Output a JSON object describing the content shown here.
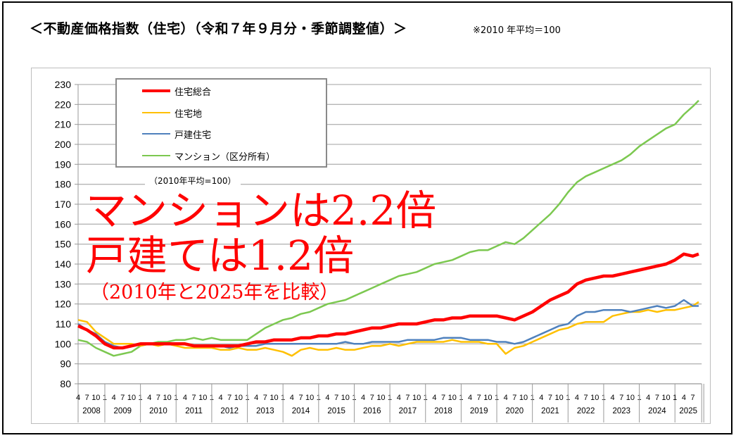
{
  "title": "＜不動産価格指数（住宅）（令和７年９月分・季節調整値）＞",
  "note": "※2010 年平均＝100",
  "annotations": {
    "base": "（2010年平均=100）",
    "line1": "マンションは2.2倍",
    "line2": "戸建ては1.2倍",
    "line3": "（2010年と2025年を比較）"
  },
  "chart_data": {
    "type": "line",
    "ylabel": "",
    "ylim": [
      80,
      230
    ],
    "yticks": [
      "80",
      "90",
      "100",
      "110",
      "120",
      "130",
      "140",
      "150",
      "160",
      "170",
      "180",
      "190",
      "200",
      "210",
      "220",
      "230"
    ],
    "grid": true,
    "legend_placement": "top-left",
    "month_tick_labels": [
      "4",
      "7",
      "10",
      "1"
    ],
    "years": [
      "2008",
      "2009",
      "2010",
      "2011",
      "2012",
      "2013",
      "2014",
      "2015",
      "2016",
      "2017",
      "2018",
      "2019",
      "2020",
      "2021",
      "2022",
      "2023",
      "2024",
      "2025"
    ],
    "last_year_tick_labels": [
      "1",
      "4",
      "7"
    ],
    "x": [
      "2008-04",
      "2008-07",
      "2008-10",
      "2009-01",
      "2009-04",
      "2009-07",
      "2009-10",
      "2010-01",
      "2010-04",
      "2010-07",
      "2010-10",
      "2011-01",
      "2011-04",
      "2011-07",
      "2011-10",
      "2012-01",
      "2012-04",
      "2012-07",
      "2012-10",
      "2013-01",
      "2013-04",
      "2013-07",
      "2013-10",
      "2014-01",
      "2014-04",
      "2014-07",
      "2014-10",
      "2015-01",
      "2015-04",
      "2015-07",
      "2015-10",
      "2016-01",
      "2016-04",
      "2016-07",
      "2016-10",
      "2017-01",
      "2017-04",
      "2017-07",
      "2017-10",
      "2018-01",
      "2018-04",
      "2018-07",
      "2018-10",
      "2019-01",
      "2019-04",
      "2019-07",
      "2019-10",
      "2020-01",
      "2020-04",
      "2020-07",
      "2020-10",
      "2021-01",
      "2021-04",
      "2021-07",
      "2021-10",
      "2022-01",
      "2022-04",
      "2022-07",
      "2022-10",
      "2023-01",
      "2023-04",
      "2023-07",
      "2023-10",
      "2024-01",
      "2024-04",
      "2024-07",
      "2024-10",
      "2025-01",
      "2025-04",
      "2025-07",
      "2025-09"
    ],
    "series": [
      {
        "name": "住宅総合",
        "color": "#ff0000",
        "width": 4,
        "values": [
          109,
          107,
          104,
          100,
          98,
          98,
          99,
          100,
          100,
          100,
          100,
          100,
          100,
          99,
          99,
          99,
          99,
          99,
          99,
          100,
          101,
          101,
          102,
          102,
          102,
          103,
          103,
          104,
          104,
          105,
          105,
          106,
          107,
          108,
          108,
          109,
          110,
          110,
          110,
          111,
          112,
          112,
          113,
          113,
          114,
          114,
          114,
          114,
          113,
          112,
          114,
          116,
          119,
          122,
          124,
          126,
          130,
          132,
          133,
          134,
          134,
          135,
          136,
          137,
          138,
          139,
          140,
          142,
          145,
          144,
          145
        ]
      },
      {
        "name": "住宅地",
        "color": "#ffc000",
        "width": 2,
        "values": [
          112,
          111,
          106,
          103,
          100,
          100,
          100,
          99,
          100,
          99,
          100,
          99,
          98,
          98,
          98,
          98,
          97,
          97,
          98,
          97,
          97,
          98,
          97,
          96,
          94,
          97,
          98,
          97,
          97,
          98,
          97,
          97,
          98,
          99,
          99,
          100,
          99,
          100,
          101,
          101,
          101,
          101,
          102,
          101,
          101,
          101,
          100,
          100,
          95,
          98,
          99,
          101,
          103,
          105,
          107,
          108,
          110,
          111,
          111,
          111,
          114,
          115,
          116,
          116,
          117,
          116,
          117,
          117,
          118,
          119,
          121
        ]
      },
      {
        "name": "戸建住宅",
        "color": "#4f81bd",
        "width": 2,
        "values": [
          110,
          107,
          105,
          101,
          99,
          98,
          99,
          100,
          100,
          100,
          100,
          100,
          100,
          99,
          99,
          99,
          99,
          98,
          99,
          99,
          99,
          100,
          100,
          100,
          100,
          100,
          100,
          100,
          100,
          100,
          101,
          100,
          100,
          101,
          101,
          101,
          101,
          102,
          102,
          102,
          102,
          103,
          103,
          103,
          102,
          102,
          102,
          101,
          101,
          100,
          101,
          103,
          105,
          107,
          109,
          110,
          114,
          116,
          116,
          117,
          117,
          117,
          116,
          117,
          118,
          119,
          118,
          119,
          122,
          119,
          119
        ]
      },
      {
        "name": "マンション（区分所有）",
        "color": "#7cc850",
        "width": 2,
        "values": [
          102,
          101,
          98,
          96,
          94,
          95,
          96,
          99,
          100,
          101,
          101,
          102,
          102,
          103,
          102,
          103,
          102,
          102,
          102,
          102,
          105,
          108,
          110,
          112,
          113,
          115,
          116,
          118,
          120,
          121,
          122,
          124,
          126,
          128,
          130,
          132,
          134,
          135,
          136,
          138,
          140,
          141,
          142,
          144,
          146,
          147,
          147,
          149,
          151,
          150,
          153,
          157,
          161,
          165,
          170,
          176,
          181,
          184,
          186,
          188,
          190,
          192,
          195,
          199,
          202,
          205,
          208,
          210,
          215,
          219,
          222
        ]
      }
    ]
  }
}
